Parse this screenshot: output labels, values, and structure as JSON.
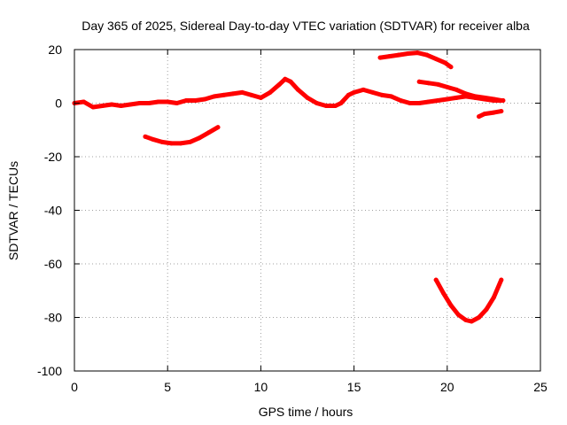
{
  "chart_data": {
    "type": "scatter",
    "title": "Day 365 of 2025, Sidereal Day-to-day VTEC variation (SDTVAR) for receiver alba",
    "xlabel": "GPS time / hours",
    "ylabel": "SDTVAR / TECUs",
    "xlim": [
      0,
      25
    ],
    "ylim": [
      -100,
      20
    ],
    "xticks": [
      0,
      5,
      10,
      15,
      20,
      25
    ],
    "yticks": [
      -100,
      -80,
      -60,
      -40,
      -20,
      0,
      20
    ],
    "xtick_labels": [
      "0",
      "5",
      "10",
      "15",
      "20",
      "25"
    ],
    "ytick_labels": [
      "-100",
      "-80",
      "-60",
      "-40",
      "-20",
      "0",
      "20"
    ],
    "grid": true,
    "series_color": "#ff0000",
    "series": [
      {
        "name": "track-main-1",
        "points": [
          [
            0,
            0
          ],
          [
            0.5,
            0.5
          ],
          [
            1,
            -1.5
          ],
          [
            1.5,
            -1
          ],
          [
            2,
            -0.5
          ],
          [
            2.5,
            -1
          ],
          [
            3,
            -0.5
          ],
          [
            3.5,
            0
          ],
          [
            4,
            0
          ],
          [
            4.5,
            0.5
          ],
          [
            5,
            0.5
          ],
          [
            5.5,
            0
          ],
          [
            6,
            1
          ],
          [
            6.5,
            1
          ],
          [
            7,
            1.5
          ],
          [
            7.5,
            2.5
          ],
          [
            8,
            3
          ],
          [
            8.5,
            3.5
          ],
          [
            9,
            4
          ],
          [
            9.5,
            3
          ],
          [
            10,
            2
          ],
          [
            10.5,
            4
          ],
          [
            11,
            7
          ],
          [
            11.3,
            9
          ],
          [
            11.6,
            8
          ],
          [
            12,
            5
          ],
          [
            12.5,
            2
          ],
          [
            13,
            0
          ],
          [
            13.5,
            -1
          ],
          [
            14,
            -1
          ],
          [
            14.3,
            0
          ],
          [
            14.7,
            3
          ],
          [
            15,
            4
          ],
          [
            15.5,
            5
          ],
          [
            16,
            4
          ],
          [
            16.5,
            3
          ],
          [
            17,
            2.5
          ],
          [
            17.5,
            1
          ],
          [
            18,
            0
          ],
          [
            18.5,
            0
          ],
          [
            19,
            0.5
          ],
          [
            19.5,
            1
          ],
          [
            20,
            1.5
          ],
          [
            20.5,
            2
          ],
          [
            21,
            2.5
          ],
          [
            21.5,
            2
          ],
          [
            22,
            1.5
          ],
          [
            22.5,
            1
          ],
          [
            23,
            1
          ]
        ]
      },
      {
        "name": "track-lower-left",
        "points": [
          [
            3.8,
            -12.5
          ],
          [
            4.2,
            -13.5
          ],
          [
            4.7,
            -14.5
          ],
          [
            5.2,
            -15
          ],
          [
            5.7,
            -15
          ],
          [
            6.2,
            -14.5
          ],
          [
            6.7,
            -13
          ],
          [
            7.2,
            -11
          ],
          [
            7.7,
            -9
          ]
        ]
      },
      {
        "name": "track-upper-right",
        "points": [
          [
            16.4,
            17
          ],
          [
            16.9,
            17.5
          ],
          [
            17.4,
            18
          ],
          [
            17.9,
            18.5
          ],
          [
            18.4,
            18.8
          ],
          [
            18.9,
            18
          ],
          [
            19.4,
            16.5
          ],
          [
            19.9,
            15
          ],
          [
            20.2,
            13.5
          ]
        ]
      },
      {
        "name": "track-mid-right",
        "points": [
          [
            18.5,
            8
          ],
          [
            19,
            7.5
          ],
          [
            19.5,
            7
          ],
          [
            20,
            6
          ],
          [
            20.5,
            5
          ],
          [
            21,
            3.5
          ],
          [
            21.5,
            2.5
          ],
          [
            22,
            2
          ],
          [
            22.5,
            1.5
          ],
          [
            22.9,
            1
          ]
        ]
      },
      {
        "name": "track-small-right",
        "points": [
          [
            21.7,
            -5
          ],
          [
            22,
            -4
          ],
          [
            22.5,
            -3.5
          ],
          [
            22.9,
            -3
          ]
        ]
      },
      {
        "name": "track-deep-dip",
        "points": [
          [
            19.4,
            -66
          ],
          [
            19.8,
            -71
          ],
          [
            20.2,
            -75.5
          ],
          [
            20.6,
            -79
          ],
          [
            21,
            -81
          ],
          [
            21.3,
            -81.5
          ],
          [
            21.7,
            -80
          ],
          [
            22.1,
            -77
          ],
          [
            22.5,
            -72.5
          ],
          [
            22.9,
            -66
          ]
        ]
      }
    ]
  }
}
